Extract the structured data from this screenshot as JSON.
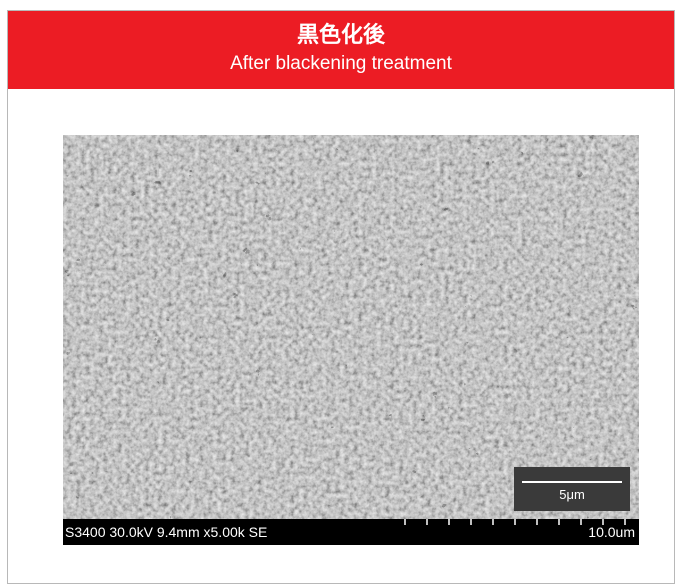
{
  "header": {
    "title_jp": "黒色化後",
    "title_en": "After blackening treatment",
    "background_color": "#ec1c24"
  },
  "micrograph": {
    "scale_bar_label": "5μm",
    "info_left": "S3400 30.0kV 9.4mm x5.00k SE",
    "info_right": "10.0um"
  }
}
